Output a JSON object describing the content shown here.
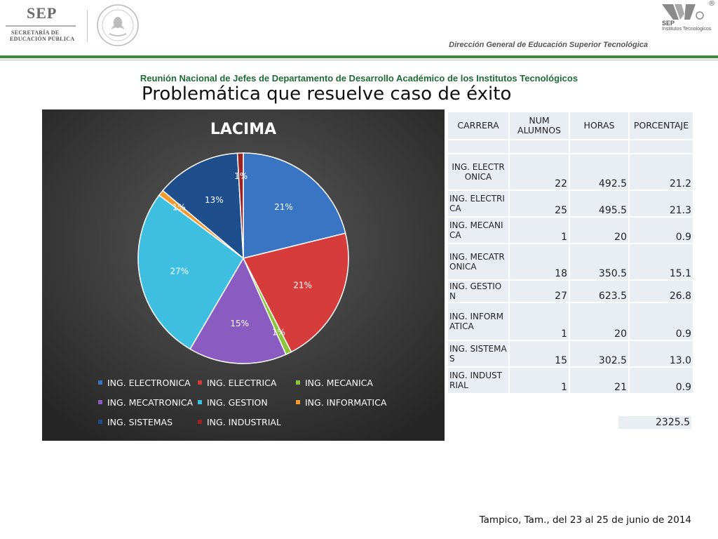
{
  "header": {
    "sep_word": "SEP",
    "sep_sub1": "SECRETARÍA DE",
    "sep_sub2": "EDUCACIÓN PÚBLICA",
    "it_sep": "SEP",
    "it_text": "Institutos Tecnológicos",
    "it_reg": "®",
    "dgest": "Dirección General de Educación Superior Tecnológica",
    "meeting": "Reunión Nacional de Jefes de Departamento de Desarrollo Académico de los Institutos Tecnológicos"
  },
  "title": "Problemática que resuelve caso de éxito",
  "chart_data": {
    "type": "pie",
    "title": "LACIMA",
    "categories": [
      "ING. ELECTRONICA",
      "ING. ELECTRICA",
      "ING. MECANICA",
      "ING. MECATRONICA",
      "ING. GESTION",
      "ING. INFORMATICA",
      "ING. SISTEMAS",
      "ING. INDUSTRIAL"
    ],
    "values": [
      21.2,
      21.3,
      0.9,
      15.1,
      26.8,
      0.9,
      13.0,
      0.9
    ],
    "labels": [
      "21%",
      "21%",
      "1%",
      "15%",
      "27%",
      "1%",
      "13%",
      "1%"
    ],
    "colors": [
      "#3a75c4",
      "#d63c3c",
      "#8cc43c",
      "#8a5bc0",
      "#3fbfe0",
      "#f29a2e",
      "#1f4e8c",
      "#9b2323"
    ],
    "legend_position": "bottom",
    "background": "#3a3a3a"
  },
  "table": {
    "headers": [
      "CARRERA",
      "NUM ALUMNOS",
      "HORAS",
      "PORCENTAJE"
    ],
    "rows": [
      {
        "carrera": "ING. ELECTRONICA",
        "alumnos": "22",
        "horas": "492.5",
        "porcentaje": "21.2"
      },
      {
        "carrera": "ING. ELECTRICA",
        "alumnos": "25",
        "horas": "495.5",
        "porcentaje": "21.3"
      },
      {
        "carrera": "ING. MECANICA",
        "alumnos": "1",
        "horas": "20",
        "porcentaje": "0.9"
      },
      {
        "carrera": "ING. MECATRONICA",
        "alumnos": "18",
        "horas": "350.5",
        "porcentaje": "15.1"
      },
      {
        "carrera": "ING. GESTION",
        "alumnos": "27",
        "horas": "623.5",
        "porcentaje": "26.8"
      },
      {
        "carrera": "ING. INFORMATICA",
        "alumnos": "1",
        "horas": "20",
        "porcentaje": "0.9"
      },
      {
        "carrera": "ING. SISTEMAS",
        "alumnos": "15",
        "horas": "302.5",
        "porcentaje": "13.0"
      },
      {
        "carrera": "ING. INDUSTRIAL",
        "alumnos": "1",
        "horas": "21",
        "porcentaje": "0.9"
      }
    ],
    "total_horas": "2325.5"
  },
  "footer": "Tampico, Tam., del 23 al 25 de junio de 2014"
}
